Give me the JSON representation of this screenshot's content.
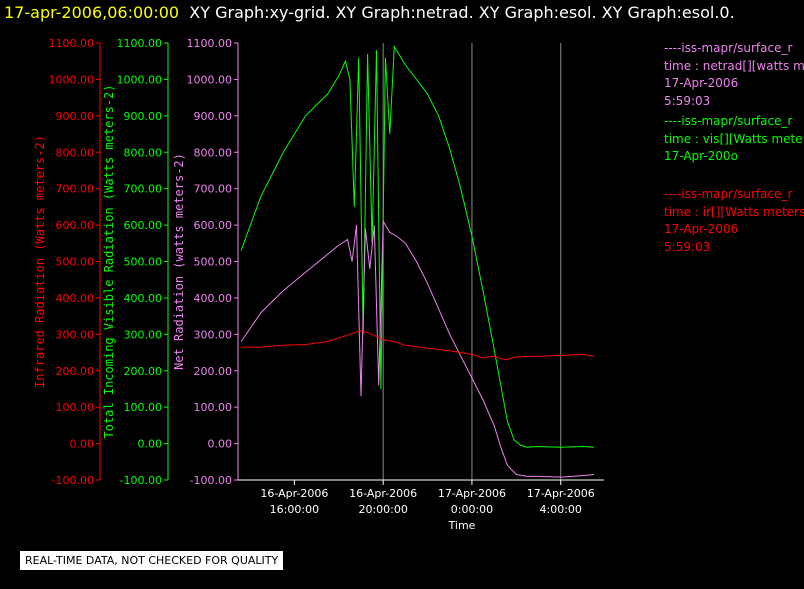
{
  "title": {
    "timestamp": "17-apr-2006,06:00:00",
    "graphs": "XY Graph:xy-grid.  XY Graph:netrad.  XY Graph:esol.  XY Graph:esol.0."
  },
  "colors": {
    "infrared": "#ff0000",
    "visible": "#00ff00",
    "net": "#ee82ee",
    "axis": "#ffffff",
    "grid": "#888888",
    "timestamp": "#ffff00"
  },
  "chart_data": {
    "type": "line",
    "xlabel": "Time",
    "x_ticks": [
      {
        "date": "16-Apr-2006",
        "time": "16:00:00"
      },
      {
        "date": "16-Apr-2006",
        "time": "20:00:00"
      },
      {
        "date": "17-Apr-2006",
        "time": "0:00:00"
      },
      {
        "date": "17-Apr-2006",
        "time": "4:00:00"
      }
    ],
    "x_tick_hours": [
      16,
      20,
      24,
      28
    ],
    "xlim_hours": [
      13.55,
      29.95
    ],
    "axes": [
      {
        "id": "infrared",
        "label": "Infrared Radiation (Watts meters-2)",
        "color": "#ff0000",
        "ylim": [
          -100,
          1100
        ]
      },
      {
        "id": "visible",
        "label": "Total Incoming Visible Radiation (Watts meters-2)",
        "color": "#00ff00",
        "ylim": [
          -100,
          1100
        ]
      },
      {
        "id": "net",
        "label": "Net Radiation (watts meters-2)",
        "color": "#ee82ee",
        "ylim": [
          -100,
          1100
        ]
      }
    ],
    "y_ticks": [
      "1100.00",
      "1000.00",
      "900.00",
      "800.00",
      "700.00",
      "600.00",
      "500.00",
      "400.00",
      "300.00",
      "200.00",
      "100.00",
      "0.00",
      "-100.00"
    ],
    "grid_x_hours": [
      20,
      24,
      28
    ],
    "series": [
      {
        "id": "visible",
        "color": "#00ff00",
        "x": [
          13.6,
          14.5,
          15.5,
          16.5,
          17.5,
          18.0,
          18.3,
          18.5,
          18.7,
          18.9,
          19.1,
          19.3,
          19.5,
          19.7,
          19.9,
          20.1,
          20.3,
          20.5,
          20.7,
          21.0,
          21.5,
          22.0,
          22.5,
          23.0,
          23.5,
          24.0,
          24.5,
          25.0,
          25.3,
          25.6,
          25.9,
          26.2,
          26.5,
          27.0,
          28.0,
          29.0,
          29.5
        ],
        "y": [
          530,
          680,
          800,
          900,
          960,
          1010,
          1050,
          1000,
          650,
          1060,
          300,
          1070,
          550,
          1080,
          150,
          1060,
          850,
          1090,
          1070,
          1040,
          1000,
          960,
          900,
          810,
          700,
          570,
          420,
          260,
          160,
          60,
          10,
          -5,
          -10,
          -8,
          -10,
          -8,
          -10
        ]
      },
      {
        "id": "net",
        "color": "#ee82ee",
        "x": [
          13.6,
          14.5,
          15.5,
          16.5,
          17.5,
          18.0,
          18.4,
          18.6,
          18.8,
          19.0,
          19.2,
          19.4,
          19.6,
          19.8,
          20.0,
          20.3,
          20.6,
          21.0,
          21.5,
          22.0,
          22.5,
          23.0,
          23.5,
          24.0,
          24.5,
          25.0,
          25.3,
          25.6,
          26.0,
          26.5,
          27.0,
          28.0,
          29.0,
          29.5
        ],
        "y": [
          280,
          360,
          420,
          470,
          520,
          545,
          560,
          500,
          600,
          130,
          590,
          480,
          600,
          160,
          610,
          580,
          570,
          550,
          500,
          440,
          370,
          300,
          240,
          180,
          120,
          50,
          -10,
          -60,
          -85,
          -90,
          -90,
          -92,
          -88,
          -85
        ]
      },
      {
        "id": "infrared",
        "color": "#ff0000",
        "x": [
          13.6,
          14.5,
          15.5,
          16.5,
          17.5,
          18.0,
          18.5,
          19.0,
          19.5,
          20.0,
          20.5,
          21.0,
          22.0,
          23.0,
          24.0,
          24.5,
          25.0,
          25.5,
          26.0,
          27.0,
          28.0,
          29.0,
          29.5
        ],
        "y": [
          265,
          265,
          270,
          272,
          280,
          290,
          300,
          310,
          300,
          285,
          280,
          270,
          262,
          255,
          245,
          235,
          240,
          230,
          238,
          240,
          242,
          245,
          240
        ]
      }
    ]
  },
  "legend": [
    {
      "color": "#ee82ee",
      "lines": [
        "----iss-mapr/surface_r",
        "time : netrad[][watts m",
        "17-Apr-2006",
        "5:59:03"
      ]
    },
    {
      "color": "#00ff00",
      "lines": [
        "----iss-mapr/surface_r",
        "time : vis[][Watts mete",
        "17-Apr-200o"
      ]
    },
    {
      "color": "#ff0000",
      "lines": [
        "----iss-mapr/surface_r",
        "time : ir[][Watts meters",
        "17-Apr-2006",
        "5:59:03"
      ]
    }
  ],
  "footer": "REAL-TIME DATA, NOT CHECKED FOR QUALITY"
}
